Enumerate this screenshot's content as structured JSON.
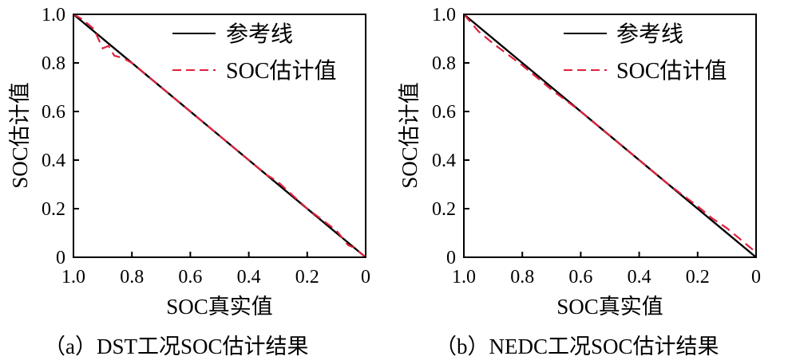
{
  "chart_data": [
    {
      "type": "line",
      "caption": "（a）DST工况SOC估计结果",
      "xlabel": "SOC真实值",
      "ylabel": "SOC估计值",
      "xlim": [
        1.0,
        0.0
      ],
      "ylim": [
        0.0,
        1.0
      ],
      "x_ticks": [
        "1.0",
        "0.8",
        "0.6",
        "0.4",
        "0.2",
        "0"
      ],
      "y_ticks": [
        "0",
        "0.2",
        "0.4",
        "0.6",
        "0.8",
        "1.0"
      ],
      "legend_position": "top-right",
      "grid": false,
      "series": [
        {
          "name": "参考线",
          "color": "#000000",
          "style": "solid",
          "x": [
            1.0,
            0.0
          ],
          "y": [
            1.0,
            0.0
          ]
        },
        {
          "name": "SOC估计值",
          "color": "#e0203c",
          "style": "dashed",
          "x": [
            1.0,
            0.97,
            0.93,
            0.9,
            0.88,
            0.86,
            0.83,
            0.8,
            0.77,
            0.7,
            0.6,
            0.5,
            0.4,
            0.34,
            0.3,
            0.2,
            0.1,
            0.08,
            0.06,
            0.04,
            0.02,
            0.0
          ],
          "y": [
            1.0,
            0.98,
            0.94,
            0.86,
            0.87,
            0.83,
            0.82,
            0.8,
            0.77,
            0.7,
            0.6,
            0.5,
            0.4,
            0.34,
            0.31,
            0.2,
            0.11,
            0.08,
            0.05,
            0.04,
            0.02,
            0.0
          ]
        }
      ]
    },
    {
      "type": "line",
      "caption": "（b）NEDC工况SOC估计结果",
      "xlabel": "SOC真实值",
      "ylabel": "SOC估计值",
      "xlim": [
        1.0,
        0.0
      ],
      "ylim": [
        0.0,
        1.0
      ],
      "x_ticks": [
        "1.0",
        "0.8",
        "0.6",
        "0.4",
        "0.2",
        "0"
      ],
      "y_ticks": [
        "0",
        "0.2",
        "0.4",
        "0.6",
        "0.8",
        "1.0"
      ],
      "legend_position": "top-right",
      "grid": false,
      "series": [
        {
          "name": "参考线",
          "color": "#000000",
          "style": "solid",
          "x": [
            1.0,
            0.0
          ],
          "y": [
            1.0,
            0.0
          ]
        },
        {
          "name": "SOC估计值",
          "color": "#e0203c",
          "style": "dashed",
          "x": [
            1.0,
            0.95,
            0.9,
            0.8,
            0.7,
            0.6,
            0.5,
            0.4,
            0.3,
            0.2,
            0.15,
            0.1,
            0.05,
            0.0
          ],
          "y": [
            1.0,
            0.93,
            0.88,
            0.79,
            0.69,
            0.6,
            0.5,
            0.4,
            0.3,
            0.21,
            0.16,
            0.12,
            0.07,
            0.02
          ]
        }
      ]
    }
  ]
}
